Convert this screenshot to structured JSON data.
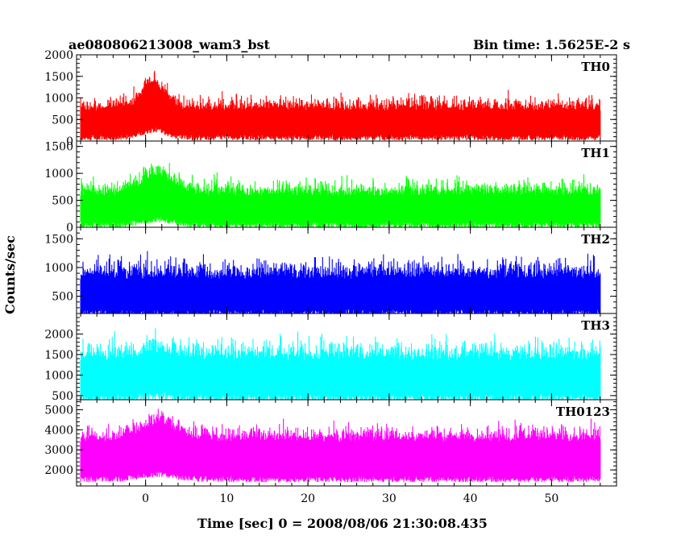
{
  "chart_data": {
    "type": "line",
    "title": "ae080806213008_wam3_bst",
    "bin_time_label": "Bin time: 1.5625E-2 s",
    "xlabel": "Time [sec] 0 = 2008/08/06 21:30:08.435",
    "ylabel": "Counts/sec",
    "xlim": [
      -8.5,
      58
    ],
    "xticks": [
      0,
      10,
      20,
      30,
      40,
      50
    ],
    "x_data_range": [
      -8,
      56
    ],
    "panels": [
      {
        "name": "TH0",
        "color": "#ff0000",
        "ylim": [
          0,
          2000
        ],
        "yticks": [
          0,
          500,
          1000,
          1500,
          2000
        ],
        "ytick_labels": [
          "0",
          "500",
          "1000",
          "1500",
          "2000"
        ],
        "baseline_mean": 700,
        "noise_amplitude": 300,
        "floor": 150,
        "burst": {
          "center": 1,
          "height": 350,
          "width": 2.2
        }
      },
      {
        "name": "TH1",
        "color": "#00ff00",
        "ylim": [
          0,
          1600
        ],
        "yticks": [
          0,
          500,
          1000,
          1500
        ],
        "ytick_labels": [
          "0",
          "500",
          "1000",
          "1500"
        ],
        "baseline_mean": 580,
        "noise_amplitude": 260,
        "floor": 100,
        "burst": {
          "center": 1.5,
          "height": 200,
          "width": 3
        }
      },
      {
        "name": "TH2",
        "color": "#0000ff",
        "ylim": [
          200,
          1700
        ],
        "yticks": [
          500,
          1000,
          1500
        ],
        "ytick_labels": [
          "500",
          "1000",
          "1500"
        ],
        "baseline_mean": 800,
        "noise_amplitude": 300,
        "floor": 270,
        "burst": {
          "center": 1.5,
          "height": 0,
          "width": 3
        }
      },
      {
        "name": "TH3",
        "color": "#00ffff",
        "ylim": [
          400,
          2500
        ],
        "yticks": [
          500,
          1000,
          1500,
          2000
        ],
        "ytick_labels": [
          "500",
          "1000",
          "1500",
          "2000"
        ],
        "baseline_mean": 1350,
        "noise_amplitude": 450,
        "floor": 550,
        "burst": {
          "center": 1.5,
          "height": 100,
          "width": 3
        }
      },
      {
        "name": "TH0123",
        "color": "#ff00ff",
        "ylim": [
          1200,
          5500
        ],
        "yticks": [
          2000,
          3000,
          4000,
          5000
        ],
        "ytick_labels": [
          "2000",
          "3000",
          "4000",
          "5000"
        ],
        "baseline_mean": 3400,
        "noise_amplitude": 700,
        "floor": 1700,
        "burst": {
          "center": 1.5,
          "height": 500,
          "width": 3
        }
      }
    ]
  }
}
